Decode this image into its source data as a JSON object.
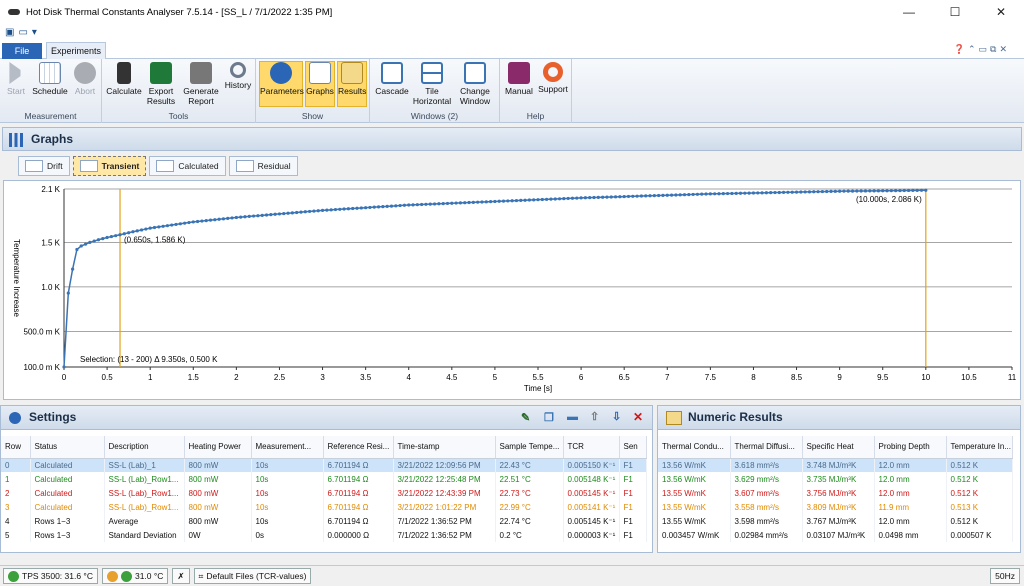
{
  "window": {
    "title": "Hot Disk Thermal Constants Analyser 7.5.14 - [SS_L  / 7/1/2022 1:35 PM]",
    "minimize": "—",
    "maximize": "☐",
    "close": "✕"
  },
  "ribbon": {
    "tabs": {
      "file": "File",
      "experiments": "Experiments"
    },
    "groups": {
      "measurement": "Measurement",
      "tools": "Tools",
      "show": "Show",
      "windows": "Windows (2)",
      "help": "Help"
    },
    "buttons": {
      "start": "Start",
      "schedule": "Schedule",
      "abort": "Abort",
      "calculate": "Calculate",
      "export": "Export Results",
      "generate": "Generate Report",
      "history": "History",
      "parameters": "Parameters",
      "graphs": "Graphs",
      "results": "Results",
      "cascade": "Cascade",
      "tile": "Tile Horizontal",
      "change": "Change Window",
      "manual": "Manual",
      "support": "Support"
    }
  },
  "graphs": {
    "title": "Graphs",
    "tabs": [
      "Drift",
      "Transient",
      "Calculated",
      "Residual"
    ],
    "active_tab": "Transient",
    "annotation_left": "(0.650s, 1.586 K)",
    "annotation_right": "(10.000s, 2.086 K)",
    "selection": "Selection: (13 - 200) Δ 9.350s, 0.500 K"
  },
  "chart_data": {
    "type": "scatter",
    "xlabel": "Time [s]",
    "ylabel": "Temperature Increase",
    "xlim": [
      0,
      11
    ],
    "ylim": [
      0.1,
      2.1
    ],
    "x_ticks": [
      "0",
      "0.5",
      "1",
      "1.5",
      "2",
      "2.5",
      "3",
      "3.5",
      "4",
      "4.5",
      "5",
      "5.5",
      "6",
      "6.5",
      "7",
      "7.5",
      "8",
      "8.5",
      "9",
      "9.5",
      "10",
      "10.5",
      "11"
    ],
    "y_ticks": [
      {
        "v": 0.1,
        "label": "100.0 m K"
      },
      {
        "v": 0.5,
        "label": "500.0 m K"
      },
      {
        "v": 1.0,
        "label": "1.0 K"
      },
      {
        "v": 1.5,
        "label": "1.5 K"
      },
      {
        "v": 2.1,
        "label": "2.1 K"
      }
    ],
    "series": [
      {
        "x": [
          0,
          0.05,
          0.1,
          0.15,
          0.2,
          0.3,
          0.4,
          0.5,
          0.65,
          0.8,
          1.0,
          1.5,
          2,
          2.5,
          3,
          3.5,
          4,
          4.5,
          5,
          5.5,
          6,
          6.5,
          7,
          7.5,
          8,
          8.5,
          9,
          9.5,
          10
        ],
        "y": [
          0.1,
          0.93,
          1.2,
          1.42,
          1.46,
          1.5,
          1.53,
          1.555,
          1.586,
          1.62,
          1.66,
          1.73,
          1.78,
          1.82,
          1.86,
          1.89,
          1.92,
          1.94,
          1.96,
          1.98,
          2.0,
          2.015,
          2.03,
          2.045,
          2.055,
          2.065,
          2.075,
          2.08,
          2.086
        ]
      }
    ],
    "markers_x": [
      0.65,
      10.0
    ],
    "grid": true,
    "colors": {
      "series": "#3a74b4",
      "marker": "#e3a21a"
    }
  },
  "settings": {
    "title": "Settings",
    "columns": [
      "Row",
      "Status",
      "Description",
      "Heating Power",
      "Measurement...",
      "Reference Resi...",
      "Time-stamp",
      "Sample Tempe...",
      "TCR",
      "Sen"
    ],
    "rows": [
      {
        "c": [
          "0",
          "Calculated",
          "SS-L (Lab)_1",
          "800 mW",
          "10s",
          "6.701194 Ω",
          "3/21/2022 12:09:56 PM",
          "22.43 °C",
          "0.005150 K⁻¹",
          "F1"
        ],
        "color": "#4a6a8a",
        "sel": true
      },
      {
        "c": [
          "1",
          "Calculated",
          "SS-L (Lab)_Row1...",
          "800 mW",
          "10s",
          "6.701194 Ω",
          "3/21/2022 12:25:48 PM",
          "22.51 °C",
          "0.005148 K⁻¹",
          "F1"
        ],
        "color": "#1e8a1e"
      },
      {
        "c": [
          "2",
          "Calculated",
          "SS-L (Lab)_Row1...",
          "800 mW",
          "10s",
          "6.701194 Ω",
          "3/21/2022 12:43:39 PM",
          "22.73 °C",
          "0.005145 K⁻¹",
          "F1"
        ],
        "color": "#d01818"
      },
      {
        "c": [
          "3",
          "Calculated",
          "SS-L (Lab)_Row1...",
          "800 mW",
          "10s",
          "6.701194 Ω",
          "3/21/2022 1:01:22 PM",
          "22.99 °C",
          "0.005141 K⁻¹",
          "F1"
        ],
        "color": "#e08a00"
      },
      {
        "c": [
          "4",
          "Rows 1−3",
          "Average",
          "800 mW",
          "10s",
          "6.701194 Ω",
          "7/1/2022 1:36:52 PM",
          "22.74 °C",
          "0.005145 K⁻¹",
          "F1"
        ],
        "color": "#111"
      },
      {
        "c": [
          "5",
          "Rows 1−3",
          "Standard Deviation",
          "0W",
          "0s",
          "0.000000 Ω",
          "7/1/2022 1:36:52 PM",
          "0.2 °C",
          "0.000003 K⁻¹",
          "F1"
        ],
        "color": "#111"
      }
    ]
  },
  "numeric": {
    "title": "Numeric Results",
    "columns": [
      "Thermal Condu...",
      "Thermal Diffusi...",
      "Specific Heat",
      "Probing Depth",
      "Temperature In..."
    ],
    "rows": [
      {
        "c": [
          "13.56 W/mK",
          "3.618 mm²/s",
          "3.748 MJ/m³K",
          "12.0 mm",
          "0.512 K"
        ],
        "color": "#4a6a8a",
        "sel": true
      },
      {
        "c": [
          "13.56 W/mK",
          "3.629 mm²/s",
          "3.735 MJ/m³K",
          "12.0 mm",
          "0.512 K"
        ],
        "color": "#1e8a1e"
      },
      {
        "c": [
          "13.55 W/mK",
          "3.607 mm²/s",
          "3.756 MJ/m³K",
          "12.0 mm",
          "0.512 K"
        ],
        "color": "#d01818"
      },
      {
        "c": [
          "13.55 W/mK",
          "3.558 mm²/s",
          "3.809 MJ/m³K",
          "11.9 mm",
          "0.513 K"
        ],
        "color": "#e08a00"
      },
      {
        "c": [
          "13.55 W/mK",
          "3.598 mm²/s",
          "3.767 MJ/m³K",
          "12.0 mm",
          "0.512 K"
        ],
        "color": "#111"
      },
      {
        "c": [
          "0.003457 W/mK",
          "0.02984 mm²/s",
          "0.03107 MJ/m³K",
          "0.0498 mm",
          "0.000507 K"
        ],
        "color": "#111"
      }
    ]
  },
  "status": {
    "tps": "TPS 3500: 31.6 °C",
    "temp": "31.0 °C",
    "files": "Default Files (TCR-values)",
    "freq": "50Hz"
  }
}
